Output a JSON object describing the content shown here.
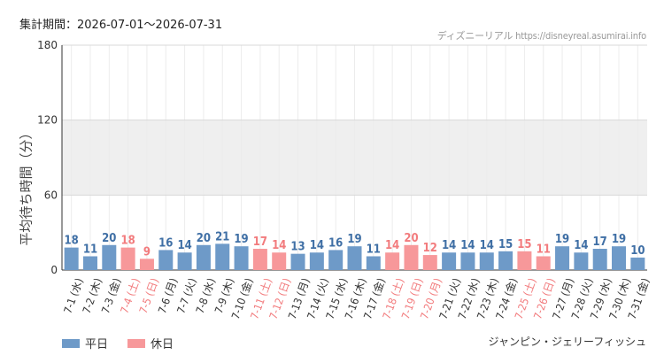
{
  "header": {
    "period_label": "集計期間：2026-07-01～2026-07-31",
    "source_label": "ディズニーリアル https://disneyreal.asumirai.info"
  },
  "footer": {
    "attraction_name": "ジャンピン・ジェリーフィッシュ"
  },
  "colors": {
    "weekday": "#6e9ac8",
    "holiday": "#f7989a",
    "weekday_label": "#3f6fa5",
    "holiday_label": "#f27b7d",
    "holiday_tick": "#f27b7d",
    "band": "#efefef"
  },
  "chart_data": {
    "type": "bar",
    "ylabel": "平均待ち時間（分）",
    "ylim": [
      0,
      180
    ],
    "yticks": [
      0,
      60,
      120,
      180
    ],
    "grid": true,
    "legend_position": "bottom-left",
    "legend": [
      {
        "name": "平日",
        "color": "#6e9ac8"
      },
      {
        "name": "休日",
        "color": "#f7989a"
      }
    ],
    "categories": [
      "7-1 (水)",
      "7-2 (木)",
      "7-3 (金)",
      "7-4 (土)",
      "7-5 (日)",
      "7-6 (月)",
      "7-7 (火)",
      "7-8 (水)",
      "7-9 (木)",
      "7-10 (金)",
      "7-11 (土)",
      "7-12 (日)",
      "7-13 (月)",
      "7-14 (火)",
      "7-15 (水)",
      "7-16 (木)",
      "7-17 (金)",
      "7-18 (土)",
      "7-19 (日)",
      "7-20 (月)",
      "7-21 (火)",
      "7-22 (水)",
      "7-23 (木)",
      "7-24 (金)",
      "7-25 (土)",
      "7-26 (日)",
      "7-27 (月)",
      "7-28 (火)",
      "7-29 (水)",
      "7-30 (木)",
      "7-31 (金)"
    ],
    "values": [
      18,
      11,
      20,
      18,
      9,
      16,
      14,
      20,
      21,
      19,
      17,
      14,
      13,
      14,
      16,
      19,
      11,
      14,
      20,
      12,
      14,
      14,
      14,
      15,
      15,
      11,
      19,
      14,
      17,
      19,
      10
    ],
    "day_types": [
      "平日",
      "平日",
      "平日",
      "休日",
      "休日",
      "平日",
      "平日",
      "平日",
      "平日",
      "平日",
      "休日",
      "休日",
      "平日",
      "平日",
      "平日",
      "平日",
      "平日",
      "休日",
      "休日",
      "休日",
      "平日",
      "平日",
      "平日",
      "平日",
      "休日",
      "休日",
      "平日",
      "平日",
      "平日",
      "平日",
      "平日"
    ]
  }
}
